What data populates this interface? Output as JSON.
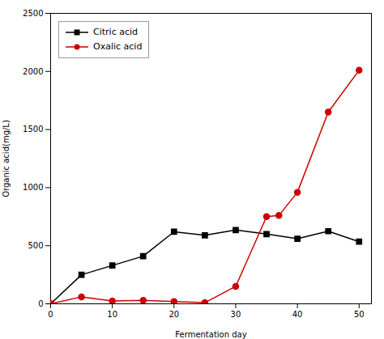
{
  "chart_data": {
    "type": "line",
    "xlabel": "Fermentation day",
    "ylabel": "Organic acid(mg/L)",
    "series": [
      {
        "name": "Citric acid",
        "color": "#000000",
        "marker": "square",
        "x": [
          0,
          5,
          10,
          15,
          20,
          25,
          30,
          35,
          40,
          45,
          50
        ],
        "values": [
          0,
          250,
          330,
          410,
          620,
          590,
          635,
          600,
          560,
          625,
          535
        ]
      },
      {
        "name": "Oxalic acid",
        "color": "#cc0000",
        "marker": "circle",
        "x": [
          0,
          5,
          10,
          15,
          20,
          25,
          30,
          35,
          37,
          40,
          45,
          50
        ],
        "values": [
          0,
          60,
          25,
          30,
          20,
          10,
          150,
          750,
          760,
          960,
          1650,
          2010
        ]
      }
    ],
    "xlim": [
      0,
      52
    ],
    "ylim": [
      0,
      2500
    ],
    "xticks": [
      0,
      10,
      20,
      30,
      40,
      50
    ],
    "yticks": [
      0,
      500,
      1000,
      1500,
      2000,
      2500
    ],
    "legend": "upper left",
    "grid": false
  }
}
